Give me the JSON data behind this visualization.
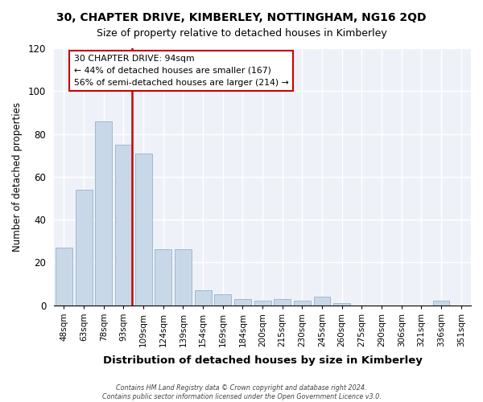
{
  "title": "30, CHAPTER DRIVE, KIMBERLEY, NOTTINGHAM, NG16 2QD",
  "subtitle": "Size of property relative to detached houses in Kimberley",
  "xlabel": "Distribution of detached houses by size in Kimberley",
  "ylabel": "Number of detached properties",
  "bar_labels": [
    "48sqm",
    "63sqm",
    "78sqm",
    "93sqm",
    "109sqm",
    "124sqm",
    "139sqm",
    "154sqm",
    "169sqm",
    "184sqm",
    "200sqm",
    "215sqm",
    "230sqm",
    "245sqm",
    "260sqm",
    "275sqm",
    "290sqm",
    "306sqm",
    "321sqm",
    "336sqm",
    "351sqm"
  ],
  "bar_values": [
    27,
    54,
    86,
    75,
    71,
    26,
    26,
    7,
    5,
    3,
    2,
    3,
    2,
    4,
    1,
    0,
    0,
    0,
    0,
    2,
    0
  ],
  "bar_color": "#c8d8e8",
  "bar_edgecolor": "#a0b8d0",
  "vline_color": "#cc0000",
  "annotation_title": "30 CHAPTER DRIVE: 94sqm",
  "annotation_line1": "← 44% of detached houses are smaller (167)",
  "annotation_line2": "56% of semi-detached houses are larger (214) →",
  "annotation_box_edgecolor": "#cc0000",
  "ylim": [
    0,
    120
  ],
  "yticks": [
    0,
    20,
    40,
    60,
    80,
    100,
    120
  ],
  "footer1": "Contains HM Land Registry data © Crown copyright and database right 2024.",
  "footer2": "Contains public sector information licensed under the Open Government Licence v3.0.",
  "bg_color": "#eef2f8"
}
